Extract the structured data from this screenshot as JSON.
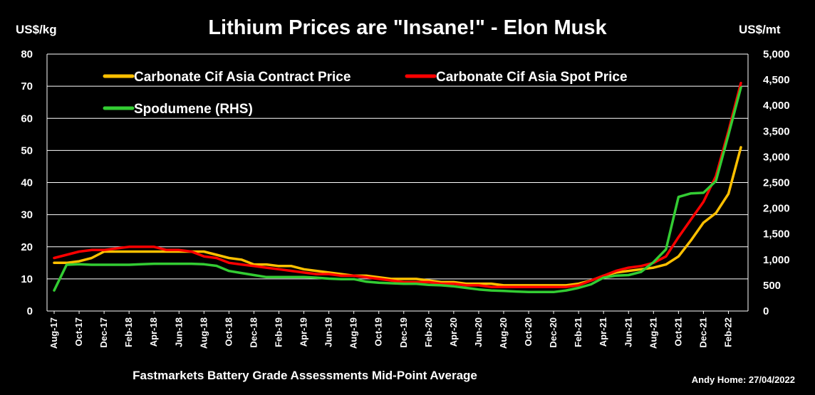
{
  "chart_data": {
    "type": "line",
    "title": "Lithium Prices are \"Insane!\" - Elon Musk",
    "ylabel_left": "US$/kg",
    "ylabel_right": "US$/mt",
    "ylim_left": [
      0,
      80
    ],
    "ylim_right": [
      0,
      5000
    ],
    "yticks_left": [
      "0",
      "10",
      "20",
      "30",
      "40",
      "50",
      "60",
      "70",
      "80"
    ],
    "yticks_right": [
      "0",
      "500",
      "1,000",
      "1,500",
      "2,000",
      "2,500",
      "3,000",
      "3,500",
      "4,000",
      "4,500",
      "5,000"
    ],
    "grid": true,
    "source_note": "Fastmarkets Battery Grade Assessments Mid-Point Average",
    "credit": "Andy Home: 27/04/2022",
    "x_tick_labels": [
      "Aug-17",
      "Oct-17",
      "Dec-17",
      "Feb-18",
      "Apr-18",
      "Jun-18",
      "Aug-18",
      "Oct-18",
      "Dec-18",
      "Feb-19",
      "Apr-19",
      "Jun-19",
      "Aug-19",
      "Oct-19",
      "Dec-19",
      "Feb-20",
      "Apr-20",
      "Jun-20",
      "Aug-20",
      "Oct-20",
      "Dec-20",
      "Feb-21",
      "Apr-21",
      "Jun-21",
      "Aug-21",
      "Oct-21",
      "Dec-21",
      "Feb-22"
    ],
    "x": [
      "Aug-17",
      "Sep-17",
      "Oct-17",
      "Nov-17",
      "Dec-17",
      "Jan-18",
      "Feb-18",
      "Mar-18",
      "Apr-18",
      "May-18",
      "Jun-18",
      "Jul-18",
      "Aug-18",
      "Sep-18",
      "Oct-18",
      "Nov-18",
      "Dec-18",
      "Jan-19",
      "Feb-19",
      "Mar-19",
      "Apr-19",
      "May-19",
      "Jun-19",
      "Jul-19",
      "Aug-19",
      "Sep-19",
      "Oct-19",
      "Nov-19",
      "Dec-19",
      "Jan-20",
      "Feb-20",
      "Mar-20",
      "Apr-20",
      "May-20",
      "Jun-20",
      "Jul-20",
      "Aug-20",
      "Sep-20",
      "Oct-20",
      "Nov-20",
      "Dec-20",
      "Jan-21",
      "Feb-21",
      "Mar-21",
      "Apr-21",
      "May-21",
      "Jun-21",
      "Jul-21",
      "Aug-21",
      "Sep-21",
      "Oct-21",
      "Nov-21",
      "Dec-21",
      "Jan-22",
      "Feb-22",
      "Mar-22"
    ],
    "series": [
      {
        "name": "Carbonate Cif Asia Contract Price",
        "axis": "left",
        "color": "#FFC000",
        "values": [
          15,
          15,
          15.5,
          16.5,
          18.5,
          18.5,
          18.5,
          18.5,
          18.5,
          18.5,
          18.5,
          18.5,
          18.5,
          17.5,
          16.5,
          16,
          14.5,
          14.5,
          14,
          14,
          13,
          12.5,
          12,
          11.5,
          11,
          11,
          10.5,
          10,
          10,
          10,
          9.5,
          9,
          9,
          8.5,
          8.5,
          8.5,
          8,
          8,
          8,
          8,
          8,
          8,
          8.5,
          9.5,
          11,
          12,
          12.5,
          13,
          13.5,
          14.5,
          17,
          22,
          27.5,
          30.5,
          36.5,
          51
        ]
      },
      {
        "name": "Carbonate Cif Asia Spot Price",
        "axis": "left",
        "color": "#FF0000",
        "values": [
          16.5,
          17.5,
          18.5,
          19,
          19,
          19.5,
          20,
          20,
          20,
          19,
          19,
          18.5,
          17,
          16.5,
          15,
          14.5,
          14,
          13.5,
          13,
          12.5,
          12,
          11.5,
          11.5,
          11,
          11,
          10.5,
          10,
          9.5,
          9,
          9,
          9,
          8.5,
          8.5,
          8,
          8,
          7.5,
          7.5,
          7.5,
          7.5,
          7.5,
          7.5,
          7.5,
          8,
          9.5,
          11,
          12.5,
          13.5,
          14,
          15,
          17,
          23,
          28.5,
          34,
          42,
          56,
          71
        ]
      },
      {
        "name": "Spodumene (RHS)",
        "axis": "right",
        "color": "#33CC33",
        "values": [
          400,
          900,
          910,
          900,
          900,
          900,
          900,
          910,
          920,
          920,
          920,
          920,
          910,
          880,
          780,
          740,
          700,
          660,
          660,
          660,
          660,
          650,
          630,
          620,
          620,
          570,
          550,
          540,
          530,
          530,
          510,
          500,
          480,
          450,
          420,
          400,
          390,
          380,
          370,
          370,
          370,
          400,
          450,
          520,
          650,
          690,
          700,
          760,
          950,
          1200,
          2220,
          2290,
          2300,
          2530,
          3430,
          4350
        ]
      }
    ]
  }
}
